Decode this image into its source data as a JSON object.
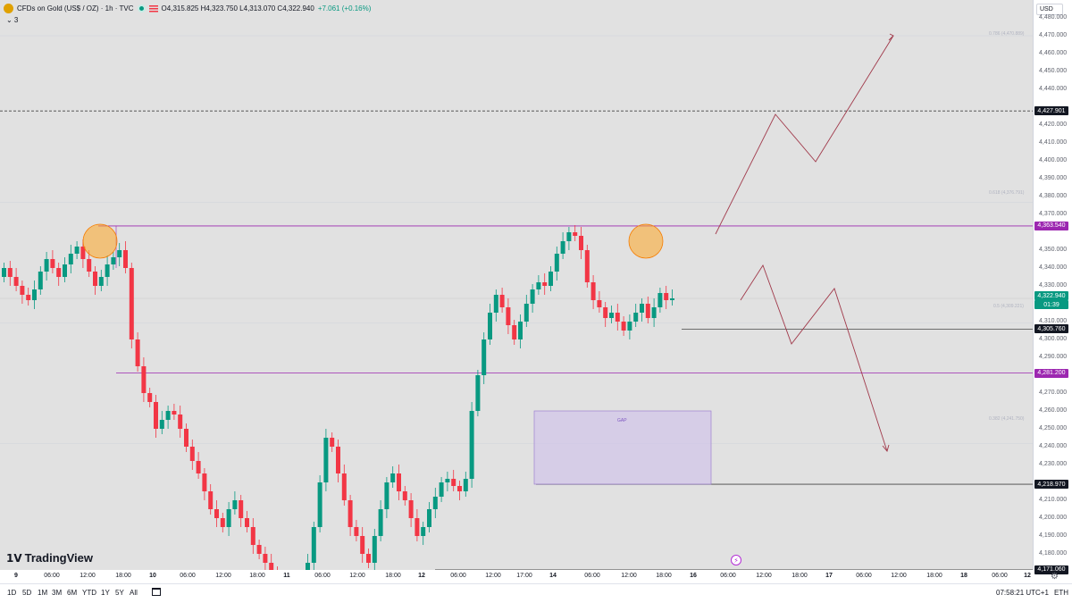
{
  "legend": {
    "symbol": "CFDs on Gold (US$ / OZ) · 1h · TVC",
    "ohlc": "O4,315.825 H4,323.750 L4,313.070 C4,322.940",
    "change": "+7.061 (+0.16%)",
    "collapse": "⌄ 3"
  },
  "currency": "USD",
  "price_ticks": [
    "4,480.000",
    "4,470.000",
    "4,460.000",
    "4,450.000",
    "4,440.000",
    "4,420.000",
    "4,410.000",
    "4,400.000",
    "4,390.000",
    "4,380.000",
    "4,370.000",
    "4,350.000",
    "4,340.000",
    "4,330.000",
    "4,310.000",
    "4,300.000",
    "4,290.000",
    "4,270.000",
    "4,260.000",
    "4,250.000",
    "4,240.000",
    "4,230.000",
    "4,210.000",
    "4,200.000",
    "4,190.000",
    "4,180.000",
    "4,160.000"
  ],
  "price_tags": {
    "dashed": "4,427.901",
    "resistance": "4,363.540",
    "current": "4,322.940",
    "countdown": "01:39",
    "support1": "4,305.760",
    "support2": "4,281.200",
    "gap_low": "4,218.970",
    "low": "4,171.060"
  },
  "fib_labels": {
    "f1": "0.786 (4,470.889)",
    "f2": "0.618 (4,376.791)",
    "f3": "0.5 (4,309.221)",
    "f4": "0.382 (4,241.750)"
  },
  "gap_label": "GAP",
  "time_ticks": [
    "9",
    "06:00",
    "12:00",
    "18:00",
    "10",
    "06:00",
    "12:00",
    "18:00",
    "11",
    "06:00",
    "12:00",
    "18:00",
    "12",
    "06:00",
    "12:00",
    "17:00",
    "14",
    "06:00",
    "12:00",
    "18:00",
    "16",
    "06:00",
    "12:00",
    "18:00",
    "17",
    "06:00",
    "12:00",
    "18:00",
    "18",
    "06:00",
    "12"
  ],
  "timeframes": [
    "1D",
    "5D",
    "1M",
    "3M",
    "6M",
    "YTD",
    "1Y",
    "5Y",
    "All"
  ],
  "clock": "07:58:21 UTC+1",
  "session": "ETH",
  "brand": "TradingView",
  "colors": {
    "up": "#089981",
    "down": "#f23645",
    "level": "#9c27b0",
    "projection": "#a0394a",
    "gap_fill": "#d1c4e9"
  }
}
